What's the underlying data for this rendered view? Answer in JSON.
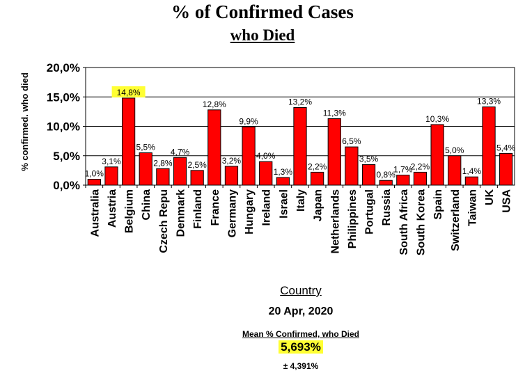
{
  "chart_data": {
    "type": "bar",
    "title": "% of Confirmed Cases",
    "subtitle": "who Died",
    "ylabel": "% confirmed. who died",
    "xlabel": "Country",
    "ylim": [
      0,
      20
    ],
    "yticks": [
      "0,0%",
      "5,0%",
      "10,0%",
      "15,0%",
      "20,0%"
    ],
    "grid": true,
    "bar_color": "#ff0000",
    "highlight_color": "#ffff33",
    "highlighted_category": "Belgium",
    "categories": [
      "Australia",
      "Austria",
      "Belgium",
      "China",
      "Czech Repu",
      "Denmark",
      "Finland",
      "France",
      "Germany",
      "Hungary",
      "Ireland",
      "Israel",
      "Italy",
      "Japan",
      "Netherlands",
      "Philippines",
      "Portugal",
      "Russia",
      "South Africa",
      "South Korea",
      "Spain",
      "Switzerland",
      "Taiwan",
      "UK",
      "USA"
    ],
    "values": [
      1.0,
      3.1,
      14.8,
      5.5,
      2.8,
      4.7,
      2.5,
      12.8,
      3.2,
      9.9,
      4.0,
      1.3,
      13.2,
      2.2,
      11.3,
      6.5,
      3.5,
      0.8,
      1.7,
      2.2,
      10.3,
      5.0,
      1.4,
      13.3,
      5.4
    ],
    "value_labels": [
      "1,0%",
      "3,1%",
      "14,8%",
      "5,5%",
      "2,8%",
      "4,7%",
      "2,5%",
      "12,8%",
      "3,2%",
      "9,9%",
      "4,0%",
      "1,3%",
      "13,2%",
      "2,2%",
      "11,3%",
      "6,5%",
      "3,5%",
      "0,8%",
      "1,7%",
      "2,2%",
      "10,3%",
      "5,0%",
      "1,4%",
      "13,3%",
      "5,4%"
    ]
  },
  "footer": {
    "date": "20 Apr, 2020",
    "mean_label": "Mean % Confirmed, who Died",
    "mean_value": "5,693%",
    "sd_value": "± 4,391%"
  }
}
